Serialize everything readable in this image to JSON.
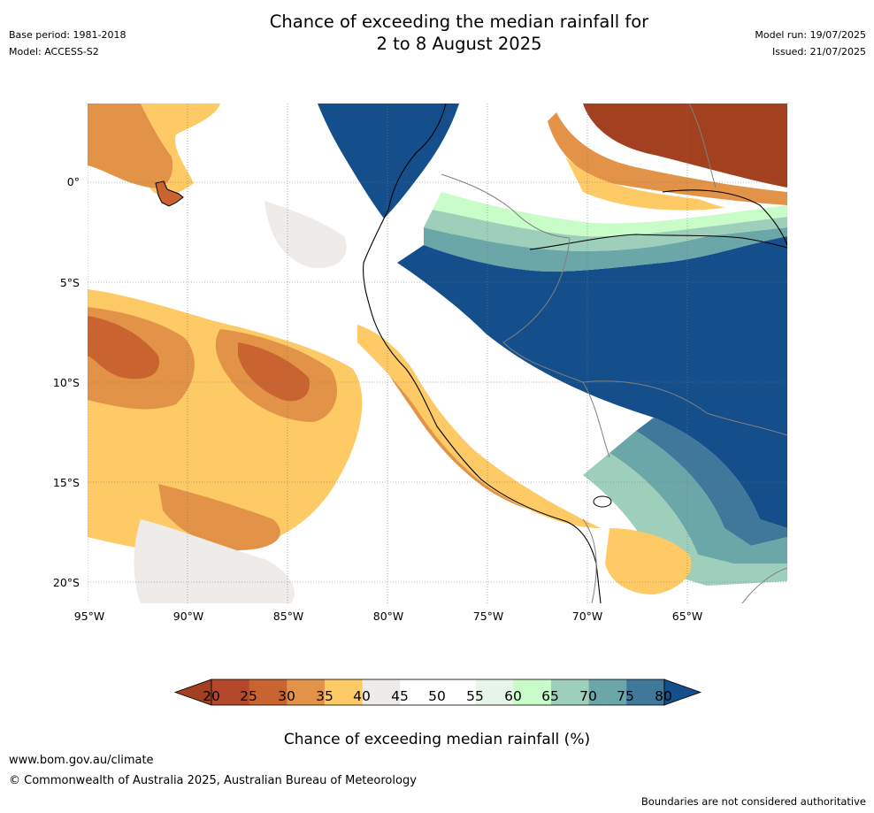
{
  "header": {
    "title_line1": "Chance of exceeding the median rainfall for",
    "title_line2": "2 to 8 August 2025",
    "base_period": "Base period: 1981-2018",
    "model": "Model: ACCESS-S2",
    "model_run": "Model run: 19/07/2025",
    "issued": "Issued: 21/07/2025"
  },
  "map": {
    "lat_labels": [
      "0°",
      "5°S",
      "10°S",
      "15°S",
      "20°S"
    ],
    "lat_values": [
      0,
      -5,
      -10,
      -15,
      -20
    ],
    "lon_labels": [
      "95°W",
      "90°W",
      "85°W",
      "80°W",
      "75°W",
      "70°W",
      "65°W"
    ],
    "lon_values": [
      -95,
      -90,
      -85,
      -80,
      -75,
      -70,
      -65
    ],
    "grid": "dotted"
  },
  "colorbar": {
    "ticks": [
      "20",
      "25",
      "30",
      "35",
      "40",
      "45",
      "50",
      "55",
      "60",
      "65",
      "70",
      "75",
      "80"
    ],
    "colors": [
      "#a3401f",
      "#b5482a",
      "#c96330",
      "#e39347",
      "#fdca65",
      "#efebe8",
      "#ffffff",
      "#ffffff",
      "#e8f5eb",
      "#c8fcc8",
      "#9ecfbb",
      "#6ba6a8",
      "#40789b",
      "#154f8b"
    ],
    "title": "Chance of exceeding median rainfall (%)"
  },
  "footer": {
    "url": "www.bom.gov.au/climate",
    "copyright": "© Commonwealth of Australia 2025, Australian Bureau of Meteorology",
    "disclaimer": "Boundaries are not considered authoritative"
  }
}
